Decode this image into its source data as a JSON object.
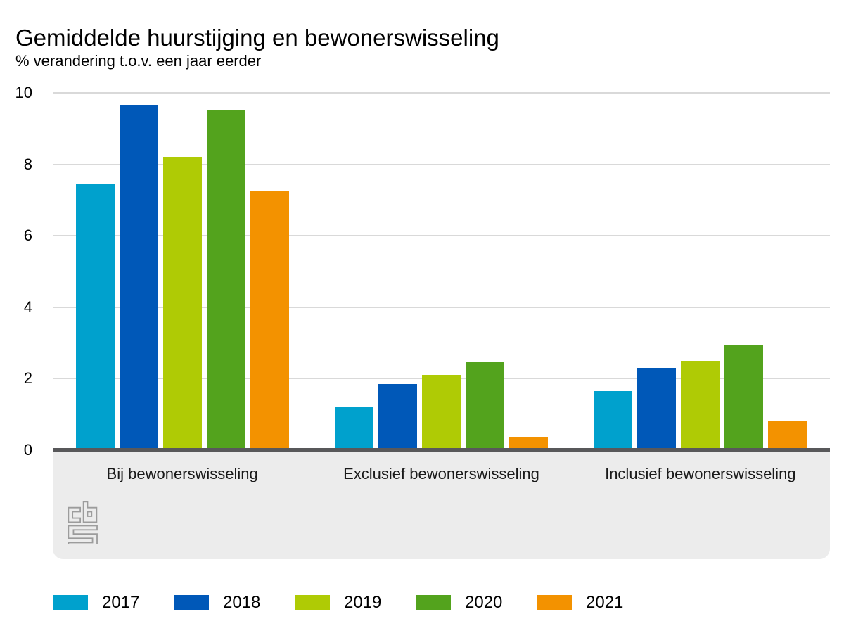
{
  "chart_data": {
    "type": "bar",
    "title": "Gemiddelde huurstijging en bewonerswisseling",
    "subtitle": "% verandering t.o.v. een jaar eerder",
    "categories": [
      "Bij bewonerswisseling",
      "Exclusief bewonerswisseling",
      "Inclusief bewonerswisseling"
    ],
    "series": [
      {
        "name": "2017",
        "color": "#00a1cd",
        "values": [
          7.4,
          1.15,
          1.6
        ]
      },
      {
        "name": "2018",
        "color": "#0058b8",
        "values": [
          9.6,
          1.8,
          2.25
        ]
      },
      {
        "name": "2019",
        "color": "#afcb05",
        "values": [
          8.15,
          2.05,
          2.45
        ]
      },
      {
        "name": "2020",
        "color": "#53a31d",
        "values": [
          9.45,
          2.4,
          2.9
        ]
      },
      {
        "name": "2021",
        "color": "#f39200",
        "values": [
          7.2,
          0.3,
          0.75
        ]
      }
    ],
    "ylim": [
      0,
      10
    ],
    "yticks": [
      0,
      2,
      4,
      6,
      8,
      10
    ],
    "grid": true,
    "legend_position": "bottom",
    "source_logo": "cbs-logo"
  },
  "colors": {
    "gridline": "#d9d9d9",
    "zero_line": "#58585a",
    "footer_band": "#ececec",
    "logo_grey": "#9c9c9c"
  }
}
